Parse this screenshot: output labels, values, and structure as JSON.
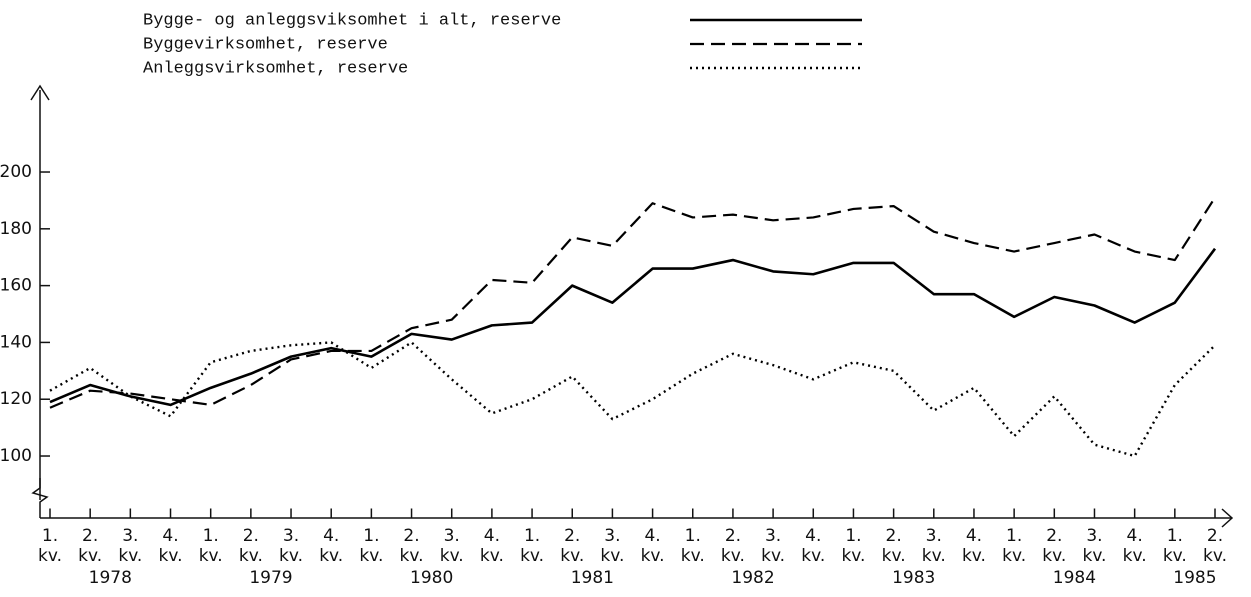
{
  "chart_data": {
    "type": "line",
    "categories": [
      "1.",
      "2.",
      "3.",
      "4.",
      "1.",
      "2.",
      "3.",
      "4.",
      "1.",
      "2.",
      "3.",
      "4.",
      "1.",
      "2.",
      "3.",
      "4.",
      "1.",
      "2.",
      "3.",
      "4.",
      "1.",
      "2.",
      "3.",
      "4.",
      "1.",
      "2.",
      "3.",
      "4.",
      "1.",
      "2."
    ],
    "category_unit": "kv.",
    "years": [
      "1978",
      "1979",
      "1980",
      "1981",
      "1982",
      "1983",
      "1984",
      "1985"
    ],
    "series": [
      {
        "name": "Bygge- og anleggsviksomhet i alt, reserve",
        "color": "#000000",
        "dash": "solid",
        "values": [
          119,
          125,
          121,
          118,
          124,
          129,
          135,
          138,
          135,
          143,
          141,
          146,
          147,
          160,
          154,
          166,
          166,
          169,
          165,
          164,
          168,
          168,
          157,
          157,
          149,
          156,
          153,
          147,
          154,
          173
        ]
      },
      {
        "name": "Byggevirksomhet, reserve",
        "color": "#000000",
        "dash": "dashed",
        "values": [
          117,
          123,
          122,
          120,
          118,
          125,
          134,
          137,
          137,
          145,
          148,
          162,
          161,
          177,
          174,
          189,
          184,
          185,
          183,
          184,
          187,
          188,
          179,
          175,
          172,
          175,
          178,
          172,
          169,
          191
        ]
      },
      {
        "name": "Anleggsvirksomhet, reserve",
        "color": "#000000",
        "dash": "dotted",
        "values": [
          123,
          131,
          121,
          114,
          133,
          137,
          139,
          140,
          131,
          140,
          127,
          115,
          120,
          128,
          113,
          120,
          129,
          136,
          132,
          127,
          133,
          130,
          116,
          124,
          107,
          121,
          104,
          100,
          125,
          139
        ]
      }
    ],
    "ylim": [
      78,
      228
    ],
    "yticks": [
      100,
      120,
      140,
      160,
      180,
      200
    ],
    "grid": false,
    "legend": "top"
  }
}
